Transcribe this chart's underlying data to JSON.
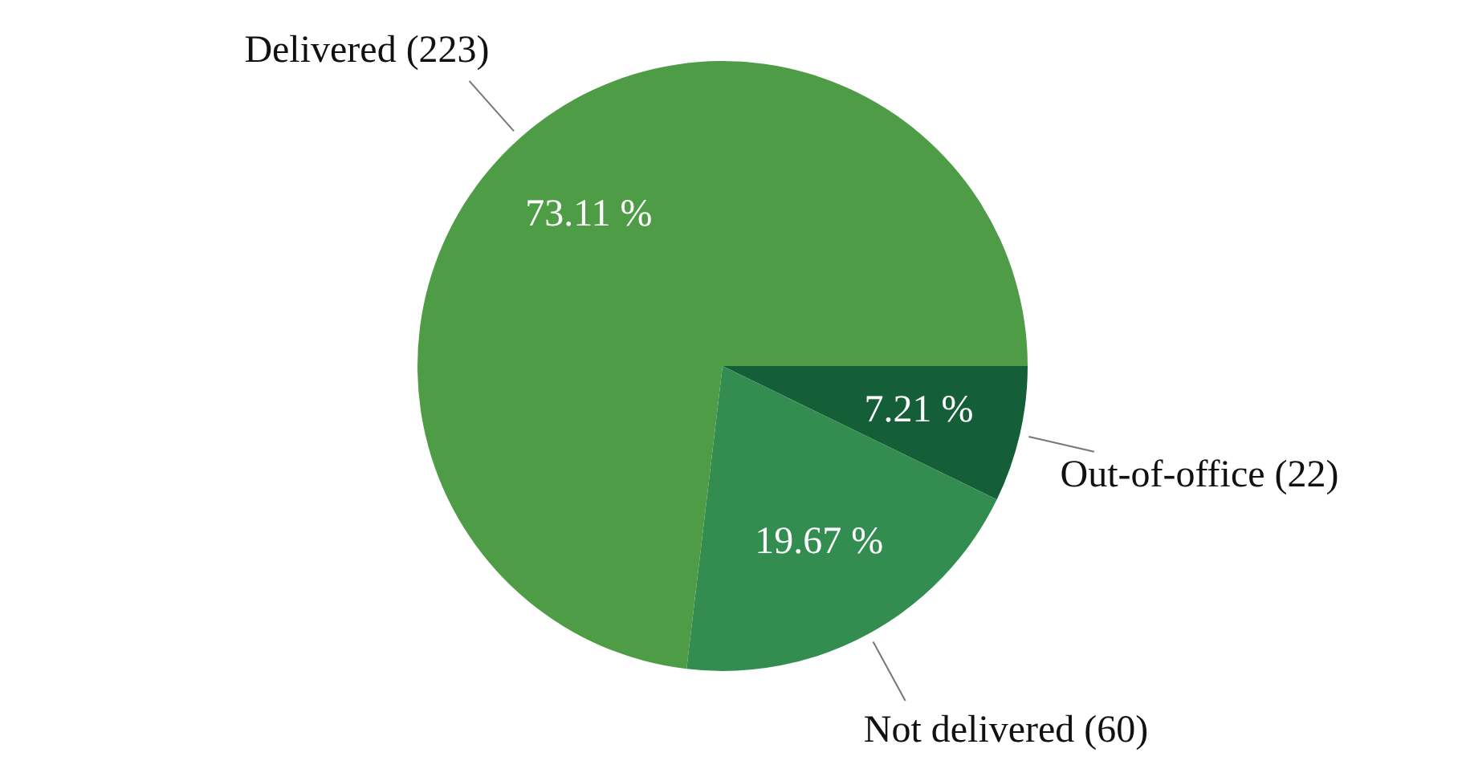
{
  "chart_data": {
    "type": "pie",
    "categories": [
      "Out-of-office (22)",
      "Not delivered (60)",
      "Delivered (223)"
    ],
    "values": [
      7.21,
      19.67,
      73.11
    ],
    "colors": [
      "#155f38",
      "#338c50",
      "#4e9c46"
    ],
    "value_labels": [
      "7.21 %",
      "19.67 %",
      "73.11 %"
    ],
    "legend": false
  }
}
